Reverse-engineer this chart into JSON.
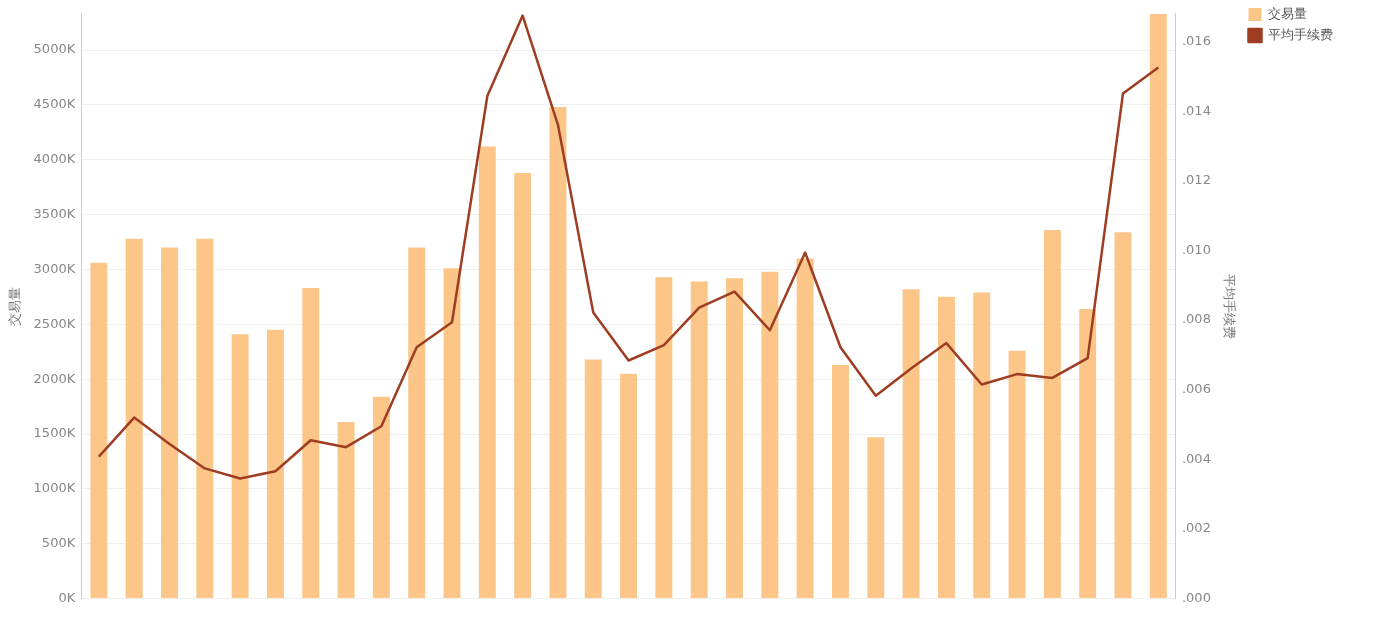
{
  "chart_data": {
    "type": "bar",
    "ylabel": "交易量",
    "y2label": "平均手续费",
    "categories": [
      null,
      null,
      null,
      null,
      null,
      null,
      null,
      null,
      null,
      null,
      null,
      null,
      null,
      null,
      null,
      null,
      null,
      null,
      null,
      null,
      null,
      null,
      null,
      null,
      null,
      null,
      null,
      null,
      null,
      null,
      null
    ],
    "series": [
      {
        "name": "交易量",
        "color": "#fdc689",
        "values": [
          3060,
          3280,
          3200,
          3280,
          2410,
          2450,
          2830,
          1610,
          1840,
          3200,
          3010,
          4120,
          3880,
          4480,
          2180,
          2050,
          2930,
          2890,
          2920,
          2980,
          3100,
          2130,
          1470,
          2820,
          2750,
          2790,
          2260,
          3360,
          2640,
          3340,
          5330
        ]
      },
      {
        "name": "平均手续费",
        "type": "line",
        "axis": "y2",
        "color": "#9e3d22",
        "values": [
          0.00408,
          0.0052,
          0.00444,
          0.00374,
          0.00345,
          0.00366,
          0.00455,
          0.00435,
          0.00495,
          0.00722,
          0.00794,
          0.01444,
          0.01675,
          0.01361,
          0.00822,
          0.00684,
          0.00728,
          0.00836,
          0.00882,
          0.00771,
          0.00994,
          0.00722,
          0.00583,
          0.00661,
          0.00734,
          0.00615,
          0.00645,
          0.00634,
          0.00691,
          0.01451,
          0.01526
        ]
      }
    ],
    "ylim": [
      0,
      5330
    ],
    "yticks": [
      {
        "value": 0,
        "label": "0K"
      },
      {
        "value": 500,
        "label": "500K"
      },
      {
        "value": 1000,
        "label": "1000K"
      },
      {
        "value": 1500,
        "label": "1500K"
      },
      {
        "value": 2000,
        "label": "2000K"
      },
      {
        "value": 2500,
        "label": "2500K"
      },
      {
        "value": 3000,
        "label": "3000K"
      },
      {
        "value": 3500,
        "label": "3500K"
      },
      {
        "value": 4000,
        "label": "4000K"
      },
      {
        "value": 4500,
        "label": "4500K"
      },
      {
        "value": 5000,
        "label": "5000K"
      }
    ],
    "y2lim": [
      0,
      0.0168
    ],
    "y2ticks": [
      {
        "value": 0,
        "label": ".000"
      },
      {
        "value": 0.002,
        "label": ".002"
      },
      {
        "value": 0.004,
        "label": ".004"
      },
      {
        "value": 0.006,
        "label": ".006"
      },
      {
        "value": 0.008,
        "label": ".008"
      },
      {
        "value": 0.01,
        "label": ".010"
      },
      {
        "value": 0.012,
        "label": ".012"
      },
      {
        "value": 0.014,
        "label": ".014"
      },
      {
        "value": 0.016,
        "label": ".016"
      }
    ],
    "grid": "y",
    "legend": "top right"
  }
}
